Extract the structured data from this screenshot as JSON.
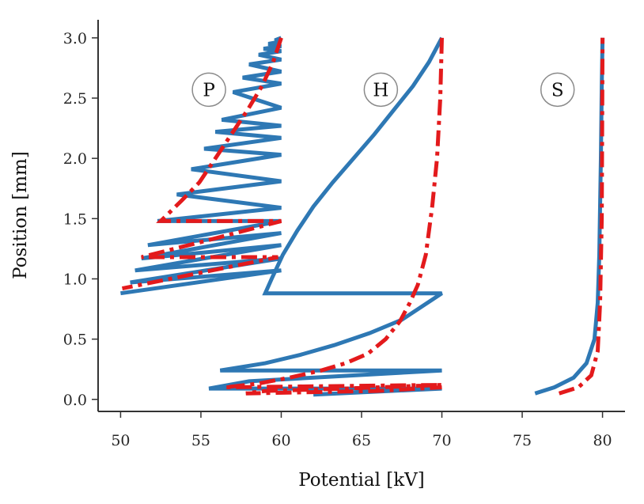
{
  "chart_data": {
    "type": "line",
    "title": "",
    "xlabel": "Potential [kV]",
    "ylabel": "Position [mm]",
    "xlim": [
      48.6,
      81.4
    ],
    "ylim": [
      -0.1,
      3.15
    ],
    "x_ticks": [
      50,
      55,
      60,
      65,
      70,
      75,
      80
    ],
    "x_tick_labels": [
      "50",
      "55",
      "60",
      "65",
      "70",
      "75",
      "80"
    ],
    "y_ticks": [
      0.0,
      0.5,
      1.0,
      1.5,
      2.0,
      2.5,
      3.0
    ],
    "y_tick_labels": [
      "0.0",
      "0.5",
      "1.0",
      "1.5",
      "2.0",
      "2.5",
      "3.0"
    ],
    "grid": false,
    "legend": "none",
    "region_labels": [
      {
        "text": "P",
        "x": 55.5,
        "y": 2.57
      },
      {
        "text": "H",
        "x": 66.2,
        "y": 2.57
      },
      {
        "text": "S",
        "x": 77.2,
        "y": 2.57
      }
    ],
    "series": [
      {
        "color": "#2e78b4",
        "style": "solid",
        "points": [
          [
            50.0,
            0.88
          ],
          [
            60.0,
            1.07
          ],
          [
            50.6,
            0.97
          ],
          [
            60.0,
            1.17
          ],
          [
            50.9,
            1.07
          ],
          [
            60.0,
            1.28
          ],
          [
            51.3,
            1.17
          ],
          [
            60.0,
            1.38
          ],
          [
            51.7,
            1.28
          ],
          [
            60.0,
            1.48
          ],
          [
            52.3,
            1.48
          ],
          [
            60.0,
            1.59
          ],
          [
            53.5,
            1.7
          ],
          [
            60.0,
            1.81
          ],
          [
            54.4,
            1.91
          ],
          [
            60.0,
            2.03
          ],
          [
            55.2,
            2.08
          ],
          [
            60.0,
            2.17
          ],
          [
            55.9,
            2.22
          ],
          [
            60.0,
            2.27
          ],
          [
            56.3,
            2.32
          ],
          [
            60.0,
            2.42
          ],
          [
            57.0,
            2.55
          ],
          [
            60.0,
            2.62
          ],
          [
            57.6,
            2.67
          ],
          [
            60.0,
            2.72
          ],
          [
            58.0,
            2.78
          ],
          [
            60.0,
            2.82
          ],
          [
            58.6,
            2.86
          ],
          [
            60.0,
            2.89
          ],
          [
            58.9,
            2.91
          ],
          [
            60.0,
            2.93
          ],
          [
            59.2,
            2.95
          ],
          [
            60.0,
            2.97
          ],
          [
            59.6,
            2.98
          ],
          [
            60.0,
            3.0
          ]
        ]
      },
      {
        "color": "#2e78b4",
        "style": "solid",
        "points": [
          [
            70.0,
            3.0
          ],
          [
            69.2,
            2.8
          ],
          [
            68.2,
            2.6
          ],
          [
            67.0,
            2.4
          ],
          [
            65.8,
            2.2
          ],
          [
            64.5,
            2.0
          ],
          [
            63.2,
            1.8
          ],
          [
            62.0,
            1.6
          ],
          [
            61.0,
            1.4
          ],
          [
            60.1,
            1.2
          ],
          [
            59.4,
            1.0
          ],
          [
            59.0,
            0.88
          ],
          [
            70.0,
            0.88
          ],
          [
            67.5,
            0.66
          ],
          [
            65.5,
            0.55
          ],
          [
            63.3,
            0.45
          ],
          [
            61.2,
            0.37
          ],
          [
            59.0,
            0.3
          ],
          [
            56.2,
            0.24
          ],
          [
            70.0,
            0.24
          ],
          [
            58.0,
            0.15
          ],
          [
            55.5,
            0.09
          ],
          [
            70.0,
            0.09
          ],
          [
            62.0,
            0.04
          ]
        ]
      },
      {
        "color": "#2e78b4",
        "style": "solid",
        "points": [
          [
            75.8,
            0.05
          ],
          [
            77.0,
            0.1
          ],
          [
            78.2,
            0.18
          ],
          [
            79.0,
            0.3
          ],
          [
            79.5,
            0.5
          ],
          [
            79.7,
            0.8
          ],
          [
            79.8,
            1.2
          ],
          [
            79.9,
            2.0
          ],
          [
            79.95,
            2.6
          ],
          [
            80.0,
            3.0
          ]
        ]
      },
      {
        "color": "#e31a1c",
        "style": "dashdot",
        "points": [
          [
            60.0,
            3.0
          ],
          [
            59.5,
            2.8
          ],
          [
            58.8,
            2.6
          ],
          [
            57.9,
            2.4
          ],
          [
            56.9,
            2.2
          ],
          [
            55.9,
            2.0
          ],
          [
            54.9,
            1.8
          ],
          [
            53.8,
            1.65
          ],
          [
            52.5,
            1.48
          ],
          [
            60.0,
            1.48
          ],
          [
            56.0,
            1.34
          ],
          [
            51.3,
            1.18
          ],
          [
            59.8,
            1.18
          ],
          [
            50.1,
            0.92
          ]
        ]
      },
      {
        "color": "#e31a1c",
        "style": "dashdot",
        "points": [
          [
            70.0,
            3.0
          ],
          [
            69.9,
            2.5
          ],
          [
            69.7,
            2.0
          ],
          [
            69.4,
            1.6
          ],
          [
            69.0,
            1.2
          ],
          [
            68.5,
            0.95
          ],
          [
            68.0,
            0.8
          ],
          [
            67.4,
            0.65
          ],
          [
            66.5,
            0.5
          ],
          [
            65.4,
            0.38
          ],
          [
            64.0,
            0.3
          ],
          [
            62.5,
            0.24
          ],
          [
            60.5,
            0.18
          ],
          [
            58.5,
            0.13
          ],
          [
            56.5,
            0.1
          ],
          [
            70.0,
            0.12
          ],
          [
            64.0,
            0.09
          ],
          [
            59.0,
            0.07
          ],
          [
            57.8,
            0.05
          ],
          [
            66.0,
            0.07
          ],
          [
            70.0,
            0.1
          ]
        ]
      },
      {
        "color": "#e31a1c",
        "style": "dashdot",
        "points": [
          [
            77.3,
            0.05
          ],
          [
            78.5,
            0.1
          ],
          [
            79.3,
            0.2
          ],
          [
            79.7,
            0.4
          ],
          [
            79.85,
            0.8
          ],
          [
            79.95,
            1.5
          ],
          [
            80.0,
            3.0
          ]
        ]
      }
    ]
  }
}
